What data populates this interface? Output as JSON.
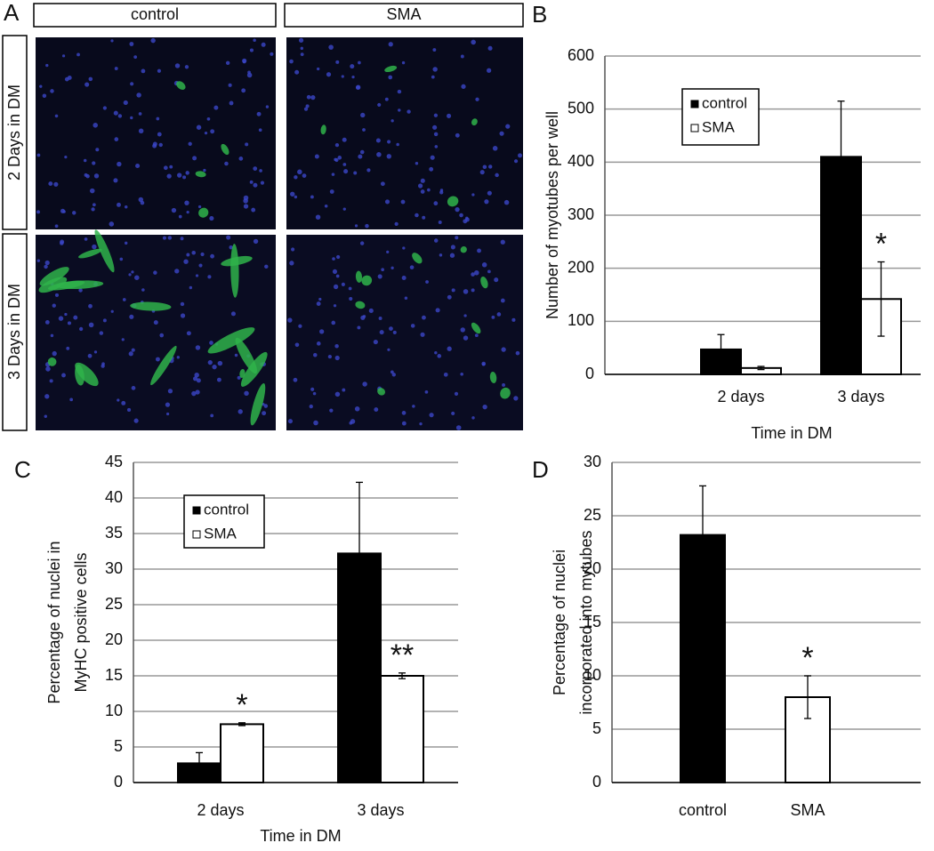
{
  "micrographs": {
    "panel": "A",
    "columns": [
      "control",
      "SMA"
    ],
    "rows": [
      "2 Days in DM",
      "3 Days in DM"
    ]
  },
  "chart_data": [
    {
      "type": "bar",
      "panel": "B",
      "ylabel": [
        "Number of myotubes per well"
      ],
      "xlabel": "Time in DM",
      "categories": [
        "2 days",
        "3 days"
      ],
      "series": [
        {
          "name": "control",
          "color": "#000000",
          "values": [
            47,
            410
          ],
          "errors": [
            28,
            105
          ],
          "marks": [
            null,
            null
          ]
        },
        {
          "name": "SMA",
          "color": "#ffffff",
          "values": [
            12,
            142
          ],
          "errors": [
            3,
            70
          ],
          "marks": [
            null,
            "*"
          ]
        }
      ],
      "ylim": [
        0,
        600
      ],
      "yticks": [
        0,
        100,
        200,
        300,
        400,
        500,
        600
      ],
      "grid": true,
      "legend": "upper left"
    },
    {
      "type": "bar",
      "panel": "C",
      "ylabel": [
        "Percentage of nuclei in",
        "MyHC positive cells"
      ],
      "xlabel": "Time in DM",
      "categories": [
        "2 days",
        "3 days"
      ],
      "series": [
        {
          "name": "control",
          "color": "#000000",
          "values": [
            2.7,
            32.2
          ],
          "errors": [
            1.5,
            10
          ],
          "marks": [
            null,
            null
          ]
        },
        {
          "name": "SMA",
          "color": "#ffffff",
          "values": [
            8.2,
            15
          ],
          "errors": [
            0.2,
            0.4
          ],
          "marks": [
            "*",
            "**"
          ]
        }
      ],
      "ylim": [
        0,
        45
      ],
      "yticks": [
        0,
        5,
        10,
        15,
        20,
        25,
        30,
        35,
        40,
        45
      ],
      "grid": true,
      "legend": "upper left"
    },
    {
      "type": "bar",
      "panel": "D",
      "ylabel": [
        "Percentage of nuclei",
        "incorporated into mytubes"
      ],
      "categories": [
        "control",
        "SMA"
      ],
      "values": [
        23.2,
        8
      ],
      "errors": [
        4.6,
        2
      ],
      "marks": [
        null,
        "*"
      ],
      "colors": [
        "#000000",
        "#ffffff"
      ],
      "ylim": [
        0,
        30
      ],
      "yticks": [
        0,
        5,
        10,
        15,
        20,
        25,
        30
      ],
      "grid": true
    }
  ]
}
